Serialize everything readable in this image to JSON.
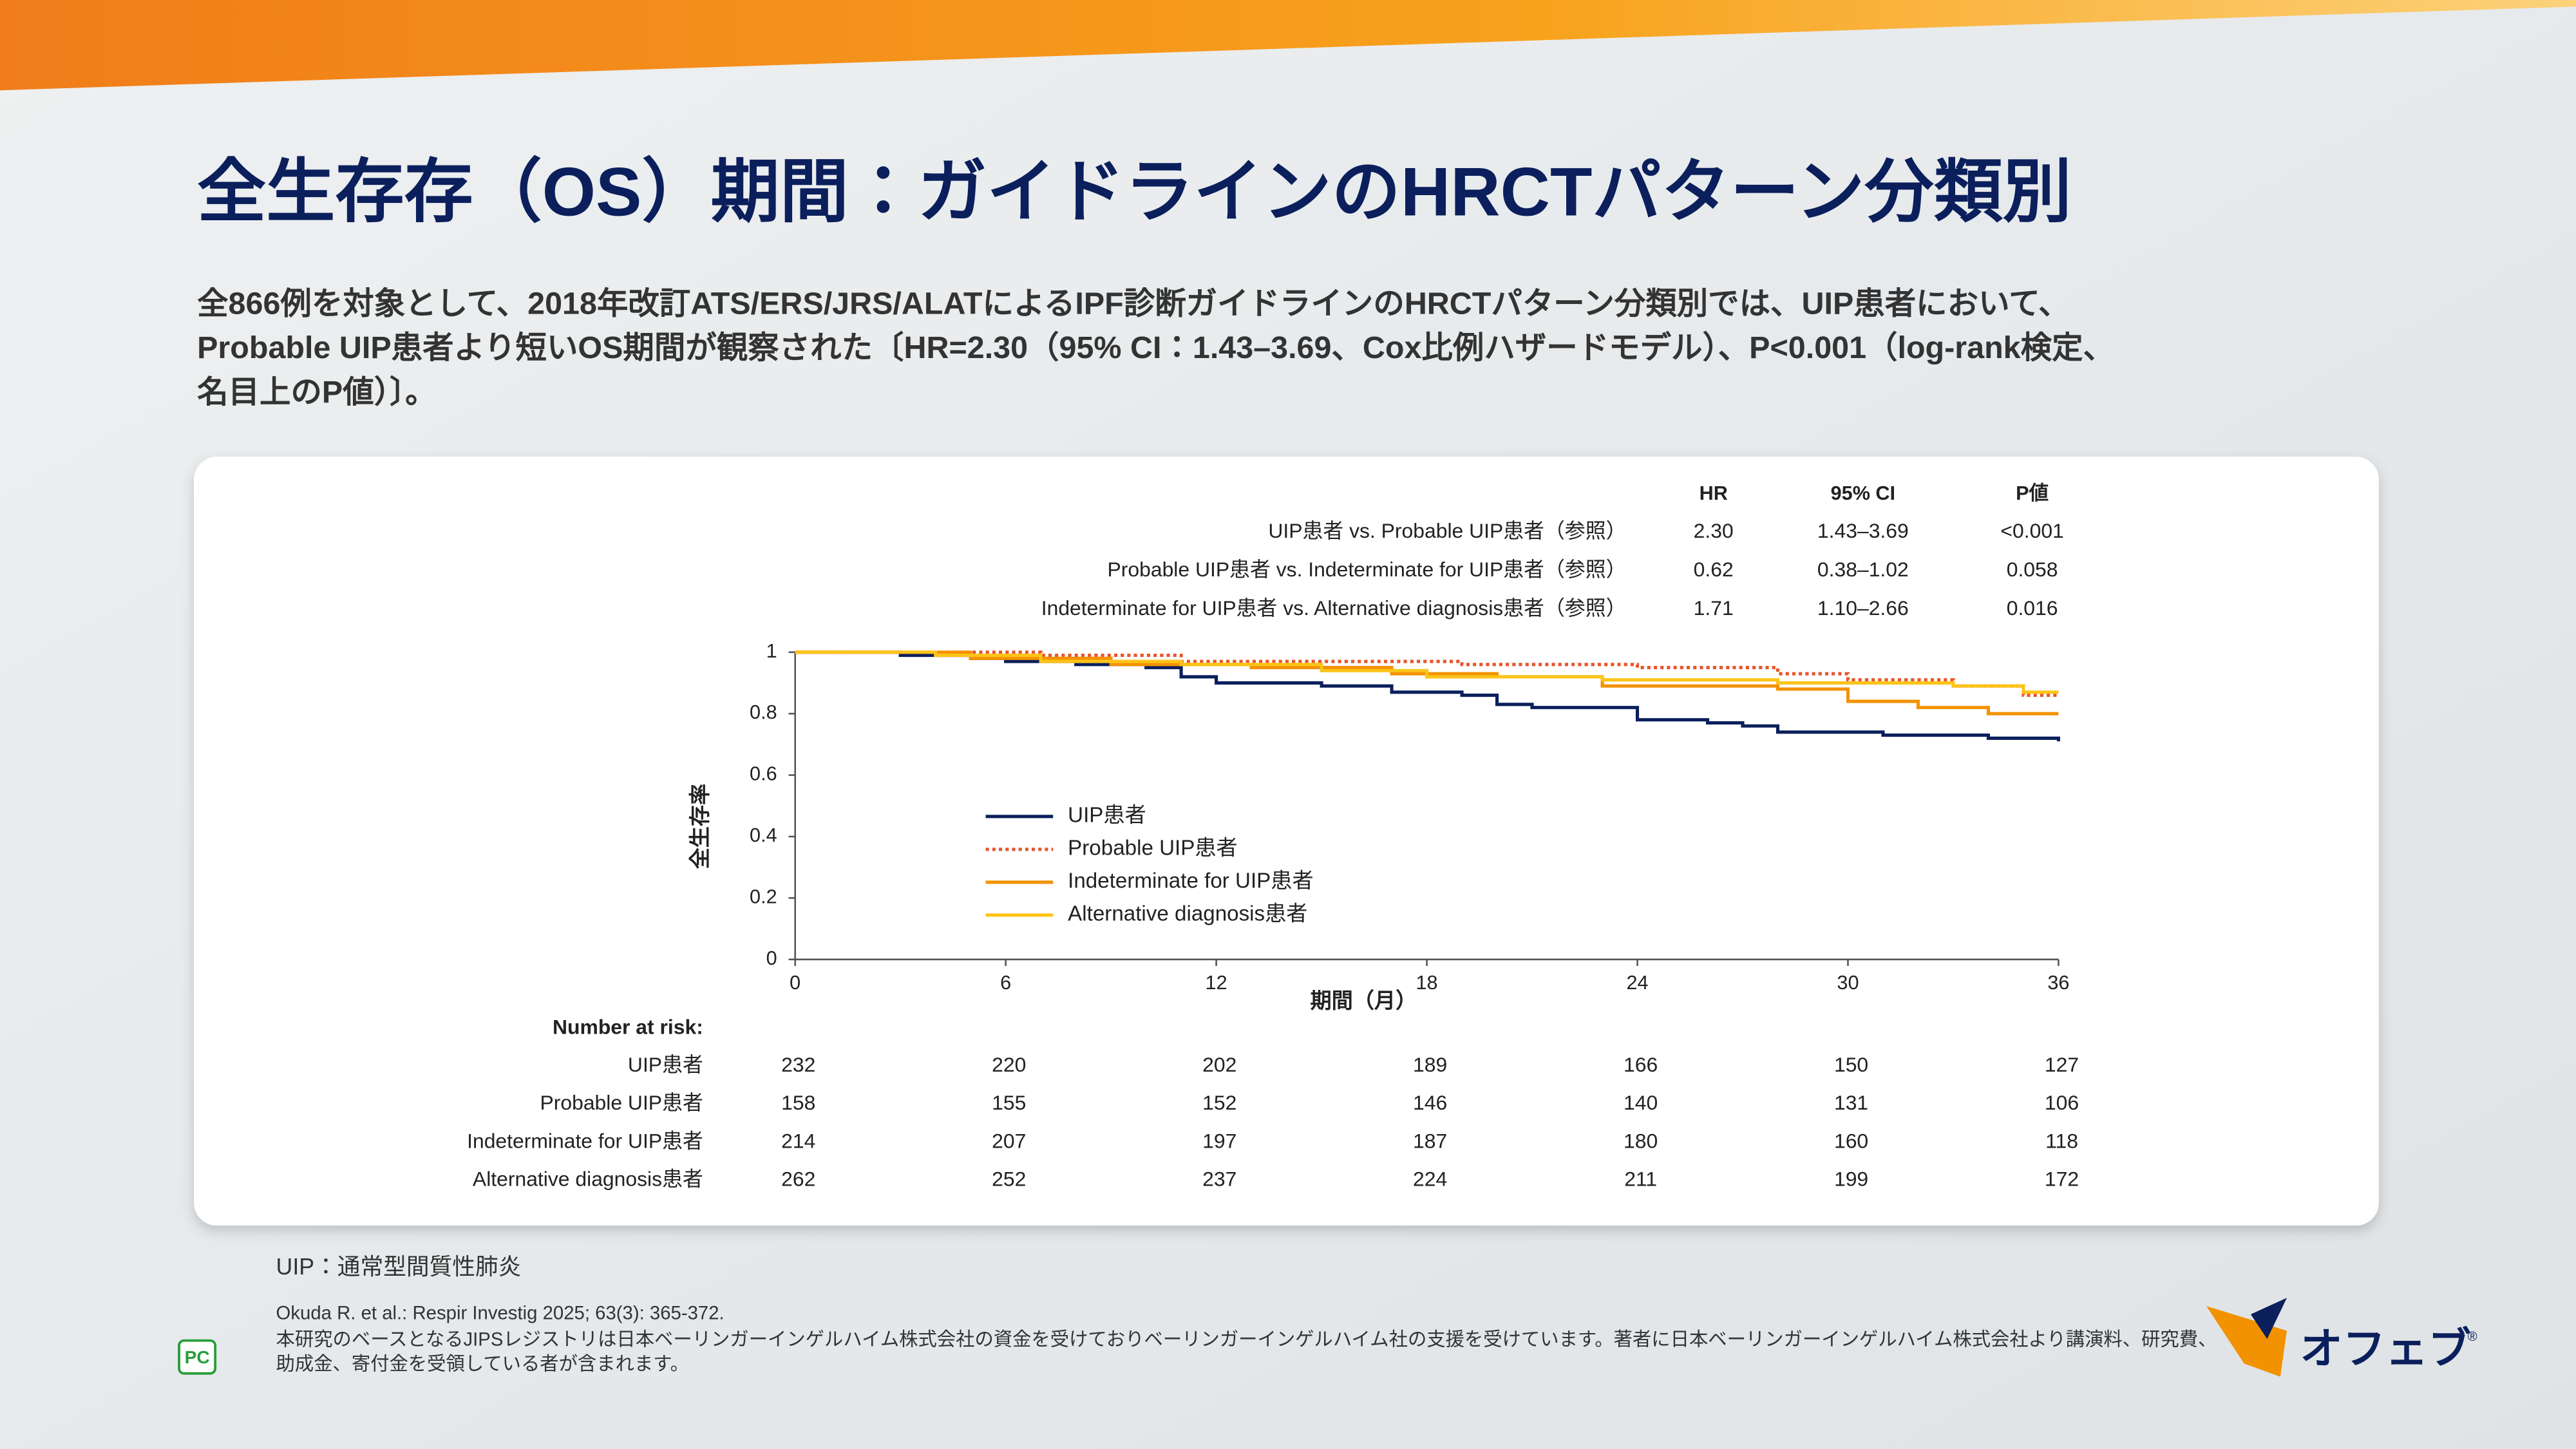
{
  "header": {
    "title": "全生存存（OS）期間：ガイドラインのHRCTパターン分類別",
    "summary": [
      "全866例を対象として、2018年改訂ATS/ERS/JRS/ALATによるIPF診断ガイドラインのHRCTパターン分類別では、UIP患者において、",
      "Probable UIP患者より短いOS期間が観察された〔HR=2.30（95% CI：1.43–3.69、Cox比例ハザードモデル）、P<0.001（log-rank検定、",
      "名目上のP値）〕。"
    ]
  },
  "hr_table": {
    "columns": [
      "HR",
      "95% CI",
      "P値"
    ],
    "rows": [
      [
        "UIP患者 vs. Probable UIP患者（参照）",
        "2.30",
        "1.43–3.69",
        "<0.001"
      ],
      [
        "Probable UIP患者 vs. Indeterminate for UIP患者（参照）",
        "0.62",
        "0.38–1.02",
        "0.058"
      ],
      [
        "Indeterminate for UIP患者 vs. Alternative diagnosis患者（参照）",
        "1.71",
        "1.10–2.66",
        "0.016"
      ]
    ]
  },
  "chart_data": {
    "type": "line",
    "x_label": "期間（月）",
    "y_label": "全生存率",
    "x": [
      0,
      1,
      2,
      3,
      4,
      5,
      6,
      7,
      8,
      9,
      10,
      11,
      12,
      13,
      14,
      15,
      16,
      17,
      18,
      19,
      20,
      21,
      22,
      23,
      24,
      25,
      26,
      27,
      28,
      29,
      30,
      31,
      32,
      33,
      34,
      35,
      36
    ],
    "xlim": [
      0,
      36
    ],
    "xticks": [
      0,
      6,
      12,
      18,
      24,
      30,
      36
    ],
    "ylim": [
      0,
      1
    ],
    "yticks": [
      0,
      0.2,
      0.4,
      0.6,
      0.8,
      1
    ],
    "series": [
      {
        "name": "UIP患者",
        "color": "#0a1f5c",
        "dash": "solid",
        "values": [
          1,
          1,
          1,
          0.99,
          0.99,
          0.98,
          0.97,
          0.97,
          0.96,
          0.96,
          0.95,
          0.92,
          0.9,
          0.9,
          0.9,
          0.89,
          0.89,
          0.87,
          0.87,
          0.86,
          0.83,
          0.82,
          0.82,
          0.82,
          0.78,
          0.78,
          0.77,
          0.76,
          0.74,
          0.74,
          0.74,
          0.73,
          0.73,
          0.73,
          0.72,
          0.72,
          0.71
        ]
      },
      {
        "name": "Probable UIP患者",
        "color": "#e8542b",
        "dash": "dotted",
        "values": [
          1,
          1,
          1,
          1,
          1,
          1,
          1,
          0.99,
          0.99,
          0.99,
          0.99,
          0.97,
          0.97,
          0.97,
          0.97,
          0.97,
          0.97,
          0.97,
          0.97,
          0.96,
          0.96,
          0.96,
          0.96,
          0.96,
          0.95,
          0.95,
          0.95,
          0.95,
          0.93,
          0.93,
          0.91,
          0.91,
          0.91,
          0.89,
          0.89,
          0.86,
          0.86
        ]
      },
      {
        "name": "Indeterminate for UIP患者",
        "color": "#f39200",
        "dash": "solid",
        "values": [
          1,
          1,
          1,
          1,
          1,
          0.98,
          0.98,
          0.98,
          0.98,
          0.96,
          0.96,
          0.96,
          0.96,
          0.95,
          0.95,
          0.95,
          0.95,
          0.93,
          0.93,
          0.93,
          0.92,
          0.92,
          0.92,
          0.89,
          0.89,
          0.89,
          0.89,
          0.89,
          0.88,
          0.88,
          0.84,
          0.84,
          0.82,
          0.82,
          0.8,
          0.8,
          0.8
        ]
      },
      {
        "name": "Alternative diagnosis患者",
        "color": "#fcc419",
        "dash": "solid",
        "values": [
          1,
          1,
          1,
          1,
          0.99,
          0.99,
          0.99,
          0.97,
          0.97,
          0.97,
          0.97,
          0.96,
          0.96,
          0.96,
          0.96,
          0.94,
          0.94,
          0.94,
          0.92,
          0.92,
          0.92,
          0.92,
          0.92,
          0.91,
          0.91,
          0.91,
          0.91,
          0.91,
          0.9,
          0.9,
          0.9,
          0.9,
          0.9,
          0.89,
          0.89,
          0.87,
          0.87
        ]
      }
    ]
  },
  "risk_table": {
    "title": "Number at risk:",
    "rows": [
      {
        "name": "UIP患者",
        "values": [
          232,
          220,
          202,
          189,
          166,
          150,
          127
        ]
      },
      {
        "name": "Probable UIP患者",
        "values": [
          158,
          155,
          152,
          146,
          140,
          131,
          106
        ]
      },
      {
        "name": "Indeterminate for UIP患者",
        "values": [
          214,
          207,
          197,
          187,
          180,
          160,
          118
        ]
      },
      {
        "name": "Alternative diagnosis患者",
        "values": [
          262,
          252,
          237,
          224,
          211,
          199,
          172
        ]
      }
    ]
  },
  "footer": {
    "abbreviation": "UIP：通常型間質性肺炎",
    "citation": "Okuda R. et al.: Respir Investig 2025; 63(3): 365-372.",
    "note": [
      "本研究のベースとなるJIPSレジストリは日本ベーリンガーインゲルハイム株式会社の資金を受けておりベーリンガーインゲルハイム社の支援を受けています。著者に日本ベーリンガーインゲルハイム株式会社より講演料、研究費、",
      "助成金、寄付金を受領している者が含まれます。"
    ],
    "badge": "PC",
    "logo": "オフェブ",
    "logo_mark": "®"
  }
}
